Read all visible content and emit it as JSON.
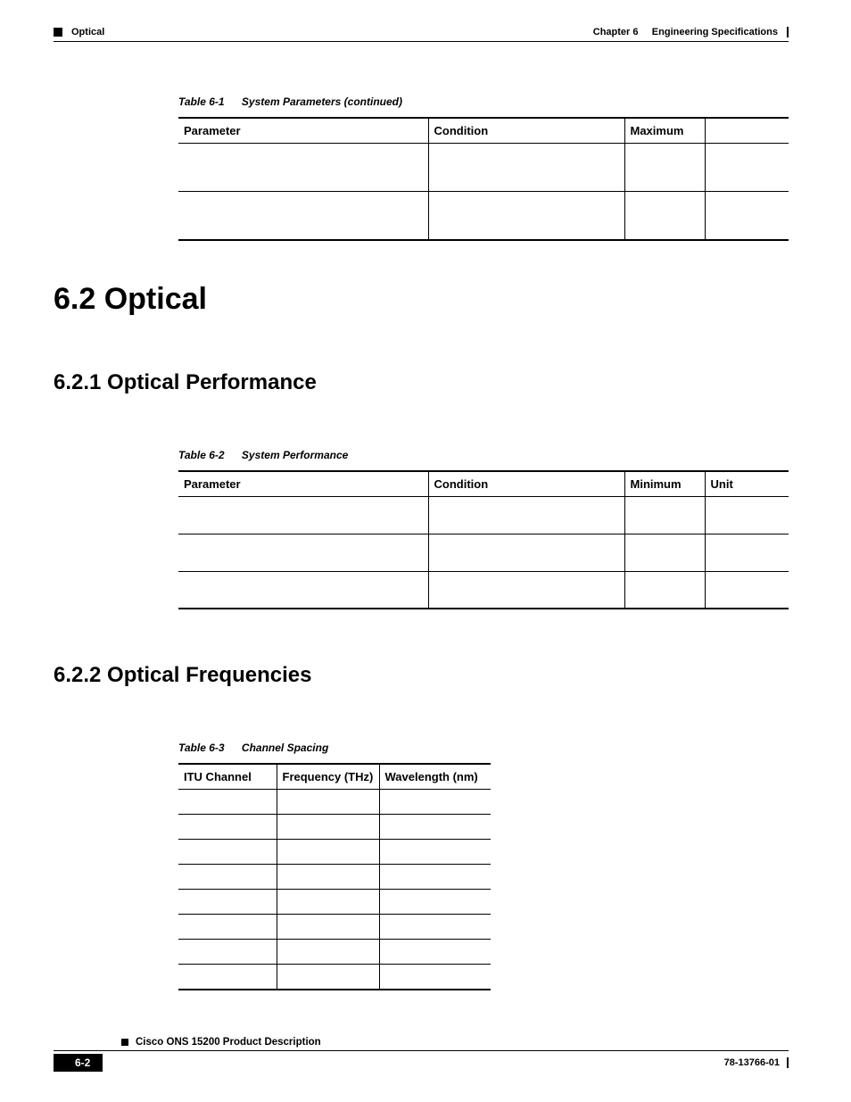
{
  "header": {
    "section_name": "Optical",
    "chapter_label": "Chapter 6",
    "chapter_title": "Engineering Specifications"
  },
  "table1": {
    "caption_num": "Table 6-1",
    "caption_title": "System Parameters (continued)",
    "columns": [
      "Parameter",
      "Condition",
      "Maximum",
      ""
    ],
    "col_widths": [
      "280px",
      "220px",
      "90px",
      "auto"
    ],
    "row_count": 2
  },
  "h1": "6.2  Optical",
  "h2a": "6.2.1  Optical Performance",
  "table2": {
    "caption_num": "Table 6-2",
    "caption_title": "System Performance",
    "columns": [
      "Parameter",
      "Condition",
      "Minimum",
      "Unit"
    ],
    "col_widths": [
      "280px",
      "220px",
      "90px",
      "auto"
    ],
    "row_count": 3
  },
  "h2b": "6.2.2  Optical Frequencies",
  "table3": {
    "caption_num": "Table 6-3",
    "caption_title": "Channel Spacing",
    "columns": [
      "ITU Channel",
      "Frequency (THz)",
      "Wavelength (nm)"
    ],
    "col_widths": [
      "110px",
      "115px",
      "auto"
    ],
    "row_count": 8
  },
  "footer": {
    "doc_title": "Cisco ONS 15200 Product Description",
    "page": "6-2",
    "doc_id": "78-13766-01"
  },
  "colors": {
    "text": "#000000",
    "background": "#ffffff"
  }
}
